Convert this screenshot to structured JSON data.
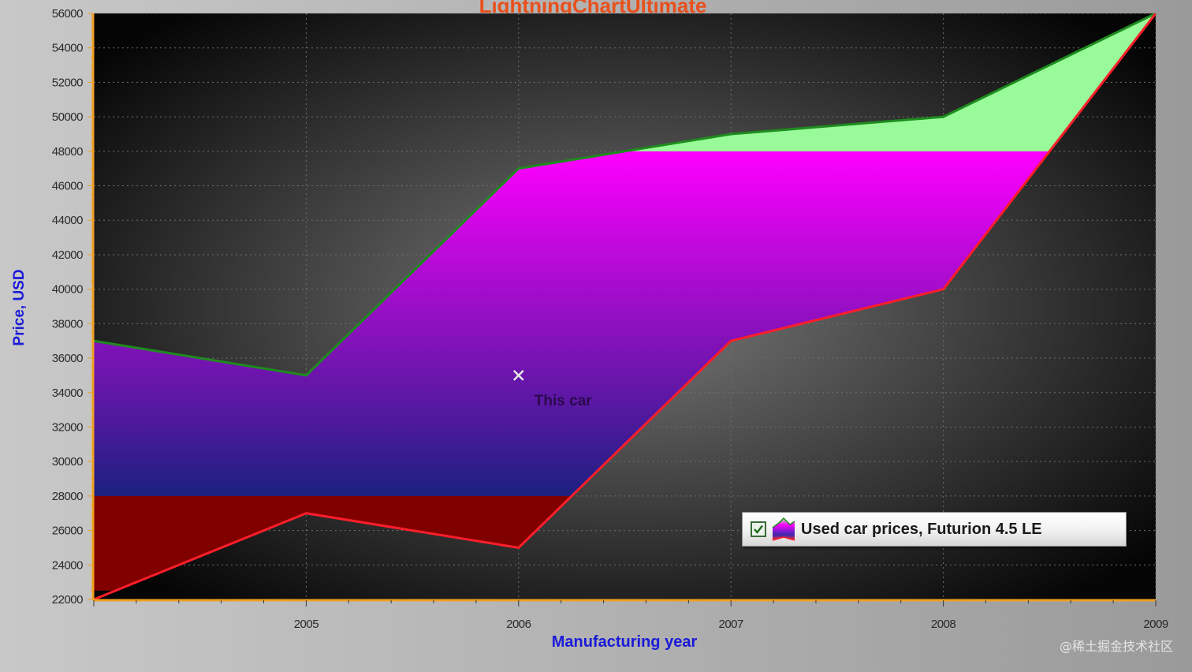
{
  "chart_data": {
    "type": "area",
    "title": "LightningChartUltimate",
    "xlabel": "Manufacturing year",
    "ylabel": "Price, USD",
    "xlim": [
      2004,
      2009
    ],
    "ylim": [
      22000,
      56000
    ],
    "x_ticks": [
      "2005",
      "2006",
      "2007",
      "2008",
      "2009"
    ],
    "y_ticks": [
      "22000",
      "24000",
      "26000",
      "28000",
      "30000",
      "32000",
      "34000",
      "36000",
      "38000",
      "40000",
      "42000",
      "44000",
      "46000",
      "48000",
      "50000",
      "52000",
      "54000",
      "56000"
    ],
    "grid": true,
    "legend_position": "bottom-right",
    "series": [
      {
        "name": "Used car prices, Futurion 4.5 LE",
        "type": "band",
        "x": [
          2004,
          2005,
          2006,
          2007,
          2008,
          2009
        ],
        "high": [
          37000,
          35000,
          47000,
          49000,
          50000,
          56000
        ],
        "low": [
          22000,
          27000,
          25000,
          37000,
          40000,
          56000
        ]
      }
    ],
    "high_limit": 48000,
    "low_limit": 28000,
    "annotation": {
      "text": "This car",
      "x": 2006,
      "y": 35000
    },
    "colors": {
      "high_line": "#1e8c1e",
      "low_line": "#ff1e2a",
      "above_limit_fill": "#98fa98",
      "below_limit_fill": "#800000",
      "band_top_fill": "#ff00ff",
      "band_bottom_fill": "#1c2080",
      "axis": "#f0a020",
      "title": "#e8501c",
      "axis_title": "#1a1ad8"
    }
  },
  "legend": {
    "checked": true,
    "label": "Used car prices, Futurion 4.5 LE"
  },
  "watermark": "@稀土掘金技术社区"
}
